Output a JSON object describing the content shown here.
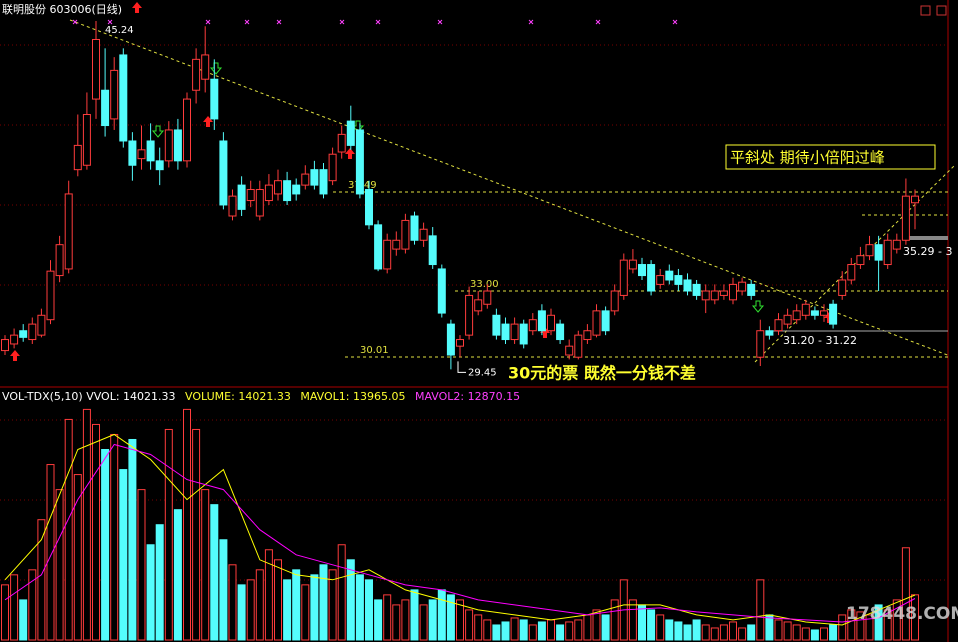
{
  "chart_data": [
    {
      "type": "candlestick",
      "title": "联明股份 603006(日线)",
      "colors": {
        "up": "#ff3c3c",
        "down": "#54fcfc"
      },
      "ylim": [
        28.74,
        46.19
      ],
      "ohlc": [
        [
          30.3,
          31.0,
          30.1,
          30.8
        ],
        [
          30.6,
          31.3,
          30.4,
          31.0
        ],
        [
          31.2,
          31.5,
          30.7,
          30.9
        ],
        [
          30.8,
          31.8,
          30.6,
          31.5
        ],
        [
          31.0,
          32.2,
          30.9,
          31.9
        ],
        [
          31.7,
          34.4,
          31.5,
          33.9
        ],
        [
          33.7,
          35.5,
          33.4,
          35.1
        ],
        [
          34.0,
          38.0,
          33.8,
          37.4
        ],
        [
          38.5,
          41.0,
          38.2,
          39.6
        ],
        [
          38.7,
          42.0,
          38.5,
          41.0
        ],
        [
          41.7,
          45.24,
          40.8,
          44.4
        ],
        [
          42.1,
          44.0,
          40.0,
          40.5
        ],
        [
          40.8,
          43.6,
          40.3,
          43.0
        ],
        [
          43.7,
          44.0,
          39.5,
          39.8
        ],
        [
          39.8,
          40.2,
          38.0,
          38.7
        ],
        [
          39.0,
          40.5,
          38.5,
          39.4
        ],
        [
          39.8,
          40.6,
          38.5,
          38.9
        ],
        [
          38.9,
          39.5,
          37.8,
          38.5
        ],
        [
          38.9,
          40.7,
          38.6,
          40.3
        ],
        [
          40.3,
          40.8,
          38.5,
          38.9
        ],
        [
          38.9,
          42.0,
          38.6,
          41.7
        ],
        [
          42.1,
          44.0,
          41.5,
          43.5
        ],
        [
          42.6,
          45.0,
          42.0,
          43.7
        ],
        [
          42.6,
          43.5,
          40.3,
          40.8
        ],
        [
          39.8,
          40.2,
          36.7,
          36.9
        ],
        [
          36.4,
          37.6,
          36.2,
          37.3
        ],
        [
          37.8,
          38.2,
          36.4,
          36.7
        ],
        [
          37.1,
          38.0,
          36.8,
          37.6
        ],
        [
          36.4,
          38.0,
          36.2,
          37.6
        ],
        [
          37.1,
          38.3,
          36.9,
          37.8
        ],
        [
          37.4,
          38.5,
          37.1,
          38.0
        ],
        [
          38.0,
          38.4,
          36.9,
          37.1
        ],
        [
          37.8,
          38.1,
          37.1,
          37.4
        ],
        [
          37.8,
          38.7,
          37.6,
          38.3
        ],
        [
          38.5,
          38.9,
          37.6,
          37.8
        ],
        [
          38.5,
          38.8,
          37.2,
          37.4
        ],
        [
          38.0,
          39.5,
          37.8,
          39.2
        ],
        [
          39.3,
          40.5,
          39.0,
          40.1
        ],
        [
          40.7,
          41.4,
          39.4,
          39.6
        ],
        [
          40.3,
          40.6,
          37.2,
          37.4
        ],
        [
          37.6,
          38.0,
          35.8,
          36.0
        ],
        [
          36.0,
          36.2,
          33.9,
          34.0
        ],
        [
          34.0,
          35.6,
          33.8,
          35.3
        ],
        [
          34.9,
          35.7,
          34.6,
          35.3
        ],
        [
          34.9,
          36.5,
          34.7,
          36.2
        ],
        [
          36.4,
          36.6,
          35.1,
          35.3
        ],
        [
          35.3,
          36.1,
          35.0,
          35.8
        ],
        [
          35.5,
          35.9,
          34.0,
          34.2
        ],
        [
          34.0,
          34.2,
          31.8,
          32.0
        ],
        [
          31.5,
          31.7,
          29.45,
          30.1
        ],
        [
          30.5,
          31.0,
          30.0,
          30.8
        ],
        [
          31.0,
          33.2,
          30.8,
          32.8
        ],
        [
          32.1,
          33.0,
          31.9,
          32.6
        ],
        [
          32.4,
          33.3,
          32.2,
          33.0
        ],
        [
          31.9,
          32.2,
          30.8,
          31.0
        ],
        [
          31.5,
          31.8,
          30.6,
          30.8
        ],
        [
          30.8,
          31.8,
          30.6,
          31.5
        ],
        [
          31.5,
          31.7,
          30.4,
          30.6
        ],
        [
          31.2,
          32.0,
          31.0,
          31.7
        ],
        [
          32.1,
          32.4,
          31.0,
          31.2
        ],
        [
          31.2,
          32.2,
          31.0,
          31.9
        ],
        [
          31.5,
          31.7,
          30.6,
          30.8
        ],
        [
          30.1,
          30.8,
          29.9,
          30.5
        ],
        [
          30.0,
          31.2,
          29.9,
          31.0
        ],
        [
          30.8,
          31.5,
          30.6,
          31.2
        ],
        [
          31.0,
          32.4,
          30.9,
          32.1
        ],
        [
          32.1,
          32.3,
          31.0,
          31.2
        ],
        [
          32.1,
          33.3,
          31.9,
          33.0
        ],
        [
          32.8,
          34.7,
          32.6,
          34.4
        ],
        [
          34.0,
          34.9,
          33.8,
          34.4
        ],
        [
          34.2,
          34.5,
          33.5,
          33.7
        ],
        [
          34.2,
          34.4,
          32.8,
          33.0
        ],
        [
          33.3,
          34.0,
          33.1,
          33.7
        ],
        [
          33.9,
          34.2,
          33.3,
          33.5
        ],
        [
          33.7,
          34.0,
          33.0,
          33.3
        ],
        [
          33.5,
          33.8,
          32.8,
          33.0
        ],
        [
          33.3,
          33.5,
          32.6,
          32.8
        ],
        [
          32.6,
          33.3,
          32.0,
          33.0
        ],
        [
          32.6,
          33.3,
          32.4,
          33.0
        ],
        [
          32.8,
          33.3,
          32.6,
          33.0
        ],
        [
          32.6,
          33.6,
          32.4,
          33.3
        ],
        [
          33.0,
          33.6,
          32.8,
          33.4
        ],
        [
          33.3,
          33.5,
          32.6,
          32.8
        ],
        [
          30.0,
          31.7,
          29.6,
          31.2
        ],
        [
          31.2,
          31.4,
          30.8,
          31.0
        ],
        [
          31.2,
          32.0,
          31.0,
          31.7
        ],
        [
          31.5,
          32.2,
          31.3,
          31.9
        ],
        [
          31.7,
          32.4,
          31.5,
          32.1
        ],
        [
          31.9,
          32.6,
          31.7,
          32.4
        ],
        [
          32.1,
          32.3,
          31.7,
          31.9
        ],
        [
          31.9,
          32.4,
          31.6,
          32.1
        ],
        [
          32.4,
          32.6,
          31.3,
          31.5
        ],
        [
          32.8,
          33.9,
          32.6,
          33.5
        ],
        [
          33.5,
          34.5,
          33.3,
          34.2
        ],
        [
          34.2,
          35.0,
          34.0,
          34.6
        ],
        [
          34.6,
          35.5,
          34.4,
          35.1
        ],
        [
          35.1,
          35.5,
          33.0,
          34.4
        ],
        [
          34.2,
          35.6,
          34.0,
          35.3
        ],
        [
          34.9,
          35.6,
          34.7,
          35.3
        ],
        [
          35.3,
          38.1,
          35.1,
          37.3
        ],
        [
          37.0,
          37.6,
          35.8,
          37.3
        ]
      ],
      "levels": [
        37.49,
        {
          "value": 33,
          "label": "33.00"
        },
        30.01
      ],
      "extremes": [
        45.24,
        29.45
      ],
      "range_labels": [
        "31.20 - 31.22",
        "35.29 - 3"
      ],
      "annotations": [
        "30元的票 既然一分钱不差",
        "平斜处 期待小倍阳过峰"
      ]
    },
    {
      "type": "volume",
      "title": "VOL-TDX(5,10)",
      "vvol_label": "VVOL:",
      "ylim": [
        0,
        76000
      ],
      "series": [
        {
          "name": "VOLUME:",
          "values": [
            17105,
            20215,
            12440,
            21770,
            37320,
            54425,
            46650,
            68420,
            51315,
            71530,
            66865,
            59090,
            63755,
            52870,
            62200,
            46650,
            29545,
            35765,
            65310,
            40430,
            71530,
            65310,
            46650,
            41985,
            31100,
            23325,
            17105,
            18660,
            21770,
            27990,
            24880,
            18660,
            21770,
            17105,
            20215,
            23325,
            21770,
            29545,
            24880,
            20215,
            18660,
            12440,
            13995,
            10885,
            12440,
            15550,
            10885,
            12440,
            15550,
            13995,
            12440,
            9330,
            7775,
            6220,
            4665,
            5598,
            6842,
            6220,
            4665,
            5598,
            6220,
            4665,
            5598,
            6220,
            7775,
            9330,
            7775,
            12440,
            18660,
            12440,
            10885,
            9330,
            7775,
            6220,
            5598,
            4665,
            6220,
            4665,
            3732,
            4665,
            5598,
            3732,
            4665,
            18660,
            7775,
            6220,
            5598,
            4665,
            3732,
            3110,
            3732,
            4665,
            7775,
            9330,
            8708,
            7775,
            10885,
            9330,
            12440,
            28612,
            14021.33
          ]
        },
        {
          "name": "MAVOL1:",
          "color": "#ffff00",
          "x": [
            0,
            4,
            8,
            12,
            16,
            20,
            24,
            28,
            32,
            36,
            40,
            44,
            48,
            52,
            56,
            60,
            64,
            68,
            72,
            76,
            80,
            84,
            88,
            92,
            96,
            100
          ],
          "values": [
            18660,
            31100,
            59090,
            63755,
            55980,
            43540,
            52870,
            24880,
            20215,
            18660,
            21770,
            15550,
            12440,
            9330,
            7775,
            6220,
            7775,
            10885,
            10885,
            7775,
            6220,
            7775,
            5598,
            4665,
            9330,
            13965.05
          ]
        },
        {
          "name": "MAVOL2:",
          "color": "#ff00ff",
          "x": [
            0,
            4,
            8,
            12,
            16,
            20,
            24,
            28,
            32,
            36,
            40,
            44,
            48,
            52,
            56,
            60,
            64,
            68,
            72,
            76,
            80,
            84,
            88,
            92,
            96,
            100
          ],
          "values": [
            12440,
            20215,
            43540,
            60645,
            57535,
            49760,
            46650,
            34210,
            26435,
            23325,
            20215,
            17105,
            15550,
            12440,
            10885,
            9330,
            7775,
            9330,
            9952,
            8708,
            7775,
            6842,
            6220,
            5598,
            6842,
            12870.15
          ]
        }
      ],
      "watermark": "178448.COM"
    }
  ]
}
